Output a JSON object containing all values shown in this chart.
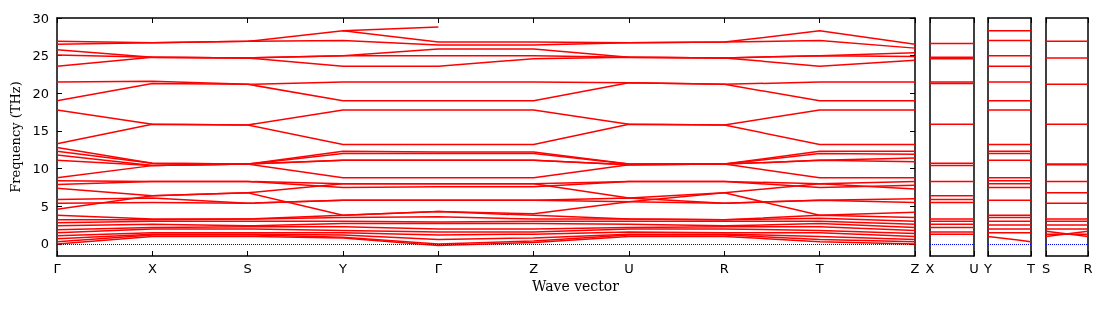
{
  "chart_data": [
    {
      "type": "line",
      "xlabel": "Wave vector",
      "ylabel": "Frequency (THz)",
      "marker": "none",
      "line_style": "solid",
      "ylim": [
        -1.6,
        30
      ],
      "yticks": [
        0,
        5,
        10,
        15,
        20,
        25,
        30
      ],
      "categories": [
        "Γ",
        "X",
        "S",
        "Y",
        "Γ",
        "Z",
        "U",
        "R",
        "T",
        "Z"
      ],
      "ref_lines": [
        {
          "axis": "y",
          "value": 0,
          "color": "#0000ff",
          "line_style": "dotted"
        }
      ],
      "series": [
        {
          "color": "#ff0000",
          "values": [
            null,
            null,
            null,
            28.3,
            28.8,
            null,
            null,
            null,
            null,
            null
          ]
        },
        {
          "color": "#ff0000",
          "values": [
            26.9,
            26.7,
            26.9,
            28.3,
            26.8,
            26.8,
            26.7,
            26.8,
            28.3,
            26.5
          ]
        },
        {
          "color": "#ff0000",
          "values": [
            26.5,
            26.7,
            26.9,
            27.0,
            26.4,
            26.4,
            26.7,
            26.8,
            27.0,
            26.0
          ]
        },
        {
          "color": "#ff0000",
          "values": [
            25.8,
            24.8,
            24.7,
            25.0,
            25.9,
            25.9,
            24.8,
            24.7,
            25.0,
            25.4
          ]
        },
        {
          "color": "#ff0000",
          "values": [
            25.1,
            24.8,
            24.7,
            25.0,
            25.0,
            25.0,
            24.8,
            24.7,
            25.0,
            24.9
          ]
        },
        {
          "color": "#ff0000",
          "values": [
            23.6,
            24.8,
            24.7,
            23.6,
            23.6,
            24.6,
            24.8,
            24.7,
            23.6,
            24.4
          ]
        },
        {
          "color": "#ff0000",
          "values": [
            21.5,
            21.6,
            21.2,
            21.5,
            21.5,
            21.5,
            21.4,
            21.2,
            21.5,
            21.5
          ]
        },
        {
          "color": "#ff0000",
          "values": [
            19.0,
            21.3,
            21.2,
            19.0,
            19.0,
            19.0,
            21.4,
            21.2,
            19.0,
            19.0
          ]
        },
        {
          "color": "#ff0000",
          "values": [
            17.8,
            15.9,
            15.8,
            17.8,
            17.8,
            17.8,
            15.9,
            15.8,
            17.8,
            17.8
          ]
        },
        {
          "color": "#ff0000",
          "values": [
            13.3,
            15.9,
            15.8,
            13.2,
            13.2,
            13.2,
            15.9,
            15.8,
            13.2,
            13.2
          ]
        },
        {
          "color": "#ff0000",
          "values": [
            12.8,
            10.7,
            10.6,
            12.3,
            12.2,
            12.2,
            10.6,
            10.6,
            12.3,
            12.3
          ]
        },
        {
          "color": "#ff0000",
          "values": [
            12.3,
            10.7,
            10.6,
            12.0,
            12.0,
            12.0,
            10.6,
            10.6,
            12.0,
            11.9
          ]
        },
        {
          "color": "#ff0000",
          "values": [
            11.8,
            10.4,
            10.6,
            11.1,
            11.1,
            11.1,
            10.5,
            10.6,
            11.1,
            11.4
          ]
        },
        {
          "color": "#ff0000",
          "values": [
            11.1,
            10.4,
            10.6,
            11.1,
            11.1,
            11.1,
            10.5,
            10.6,
            11.1,
            10.9
          ]
        },
        {
          "color": "#ff0000",
          "values": [
            8.8,
            10.4,
            10.6,
            8.8,
            8.8,
            8.8,
            10.5,
            10.6,
            8.8,
            8.8
          ]
        },
        {
          "color": "#ff0000",
          "values": [
            8.4,
            8.3,
            8.3,
            8.0,
            8.0,
            8.0,
            8.3,
            8.3,
            8.0,
            8.3
          ]
        },
        {
          "color": "#ff0000",
          "values": [
            7.9,
            8.3,
            8.3,
            7.5,
            7.6,
            7.6,
            8.3,
            8.3,
            7.5,
            7.8
          ]
        },
        {
          "color": "#ff0000",
          "values": [
            7.4,
            6.4,
            6.8,
            8.0,
            8.0,
            8.0,
            6.1,
            6.8,
            8.0,
            7.3
          ]
        },
        {
          "color": "#ff0000",
          "values": [
            5.9,
            6.1,
            5.4,
            5.8,
            5.8,
            5.8,
            6.1,
            5.4,
            5.8,
            6.0
          ]
        },
        {
          "color": "#ff0000",
          "values": [
            5.4,
            5.5,
            5.4,
            5.8,
            5.8,
            5.8,
            5.6,
            5.4,
            5.8,
            5.5
          ]
        },
        {
          "color": "#ff0000",
          "values": [
            4.6,
            6.4,
            6.8,
            3.8,
            4.3,
            4.0,
            5.6,
            6.8,
            3.8,
            4.2
          ]
        },
        {
          "color": "#ff0000",
          "values": [
            3.8,
            3.3,
            3.3,
            3.8,
            4.3,
            3.8,
            3.3,
            3.2,
            3.8,
            3.5
          ]
        },
        {
          "color": "#ff0000",
          "values": [
            3.2,
            3.2,
            3.3,
            3.5,
            3.6,
            3.3,
            3.3,
            3.2,
            3.4,
            3.0
          ]
        },
        {
          "color": "#ff0000",
          "values": [
            2.8,
            3.0,
            3.0,
            3.0,
            2.9,
            3.0,
            3.0,
            3.0,
            3.0,
            2.6
          ]
        },
        {
          "color": "#ff0000",
          "values": [
            2.4,
            2.6,
            2.4,
            2.7,
            2.7,
            2.7,
            2.6,
            2.4,
            2.7,
            2.2
          ]
        },
        {
          "color": "#ff0000",
          "values": [
            1.9,
            2.2,
            2.3,
            2.3,
            2.0,
            2.0,
            2.2,
            2.3,
            2.3,
            1.8
          ]
        },
        {
          "color": "#ff0000",
          "values": [
            1.5,
            2.0,
            2.0,
            1.8,
            1.6,
            1.6,
            2.0,
            2.0,
            1.8,
            1.4
          ]
        },
        {
          "color": "#ff0000",
          "values": [
            1.1,
            1.5,
            1.5,
            1.5,
            1.2,
            1.3,
            1.6,
            1.5,
            1.5,
            1.0
          ]
        },
        {
          "color": "#ff0000",
          "values": [
            0.7,
            1.3,
            1.3,
            1.2,
            0.6,
            0.8,
            1.3,
            1.3,
            1.0,
            0.6
          ]
        },
        {
          "color": "#ff0000",
          "values": [
            0.3,
            1.2,
            1.2,
            0.9,
            0.0,
            0.4,
            1.2,
            1.2,
            0.6,
            0.3
          ]
        },
        {
          "color": "#ff0000",
          "values": [
            0.0,
            1.0,
            1.0,
            0.8,
            -0.2,
            0.2,
            1.0,
            1.0,
            0.3,
            0.0
          ]
        }
      ]
    },
    {
      "type": "line",
      "marker": "none",
      "line_style": "solid",
      "tick_labels": "x",
      "ylim": [
        -1.6,
        30
      ],
      "yticks": [
        0,
        5,
        10,
        15,
        20,
        25,
        30
      ],
      "categories": [
        "X",
        "U"
      ],
      "ref_lines": [
        {
          "axis": "y",
          "value": 0,
          "color": "#0000ff",
          "line_style": "dotted"
        }
      ],
      "series": [
        {
          "color": "#ff0000",
          "values": [
            26.6,
            26.6
          ]
        },
        {
          "color": "#ff0000",
          "values": [
            24.8,
            24.8
          ]
        },
        {
          "color": "#ff0000",
          "values": [
            24.6,
            24.6
          ]
        },
        {
          "color": "#ff0000",
          "values": [
            21.5,
            21.5
          ]
        },
        {
          "color": "#ff0000",
          "values": [
            21.3,
            21.3
          ]
        },
        {
          "color": "#ff0000",
          "values": [
            15.9,
            15.9
          ]
        },
        {
          "color": "#ff0000",
          "values": [
            10.7,
            10.7
          ]
        },
        {
          "color": "#ff0000",
          "values": [
            10.4,
            10.4
          ]
        },
        {
          "color": "#ff0000",
          "values": [
            8.3,
            8.3
          ]
        },
        {
          "color": "#ff0000",
          "values": [
            6.4,
            6.4
          ]
        },
        {
          "color": "#ff0000",
          "values": [
            5.9,
            5.9
          ]
        },
        {
          "color": "#ff0000",
          "values": [
            5.5,
            5.5
          ]
        },
        {
          "color": "#ff0000",
          "values": [
            3.3,
            3.3
          ]
        },
        {
          "color": "#ff0000",
          "values": [
            3.0,
            3.0
          ]
        },
        {
          "color": "#ff0000",
          "values": [
            2.6,
            2.6
          ]
        },
        {
          "color": "#ff0000",
          "values": [
            2.2,
            2.2
          ]
        },
        {
          "color": "#ff0000",
          "values": [
            1.6,
            1.6
          ]
        },
        {
          "color": "#ff0000",
          "values": [
            1.3,
            1.3
          ]
        }
      ]
    },
    {
      "type": "line",
      "marker": "none",
      "line_style": "solid",
      "tick_labels": "x",
      "ylim": [
        -1.6,
        30
      ],
      "yticks": [
        0,
        5,
        10,
        15,
        20,
        25,
        30
      ],
      "categories": [
        "Y",
        "T"
      ],
      "ref_lines": [
        {
          "axis": "y",
          "value": 0,
          "color": "#0000ff",
          "line_style": "dotted"
        }
      ],
      "series": [
        {
          "color": "#ff0000",
          "values": [
            28.3,
            28.3
          ]
        },
        {
          "color": "#ff0000",
          "values": [
            27.0,
            27.0
          ]
        },
        {
          "color": "#ff0000",
          "values": [
            25.0,
            25.0
          ]
        },
        {
          "color": "#ff0000",
          "values": [
            23.6,
            23.6
          ]
        },
        {
          "color": "#ff0000",
          "values": [
            21.5,
            21.5
          ]
        },
        {
          "color": "#ff0000",
          "values": [
            19.0,
            19.0
          ]
        },
        {
          "color": "#ff0000",
          "values": [
            17.8,
            17.8
          ]
        },
        {
          "color": "#ff0000",
          "values": [
            13.2,
            13.2
          ]
        },
        {
          "color": "#ff0000",
          "values": [
            12.3,
            12.3
          ]
        },
        {
          "color": "#ff0000",
          "values": [
            12.0,
            12.0
          ]
        },
        {
          "color": "#ff0000",
          "values": [
            11.1,
            11.1
          ]
        },
        {
          "color": "#ff0000",
          "values": [
            8.8,
            8.8
          ]
        },
        {
          "color": "#ff0000",
          "values": [
            8.4,
            8.4
          ]
        },
        {
          "color": "#ff0000",
          "values": [
            8.0,
            8.0
          ]
        },
        {
          "color": "#ff0000",
          "values": [
            7.5,
            7.5
          ]
        },
        {
          "color": "#ff0000",
          "values": [
            5.8,
            5.8
          ]
        },
        {
          "color": "#ff0000",
          "values": [
            3.8,
            3.8
          ]
        },
        {
          "color": "#ff0000",
          "values": [
            3.5,
            3.5
          ]
        },
        {
          "color": "#ff0000",
          "values": [
            3.0,
            3.0
          ]
        },
        {
          "color": "#ff0000",
          "values": [
            2.5,
            2.5
          ]
        },
        {
          "color": "#ff0000",
          "values": [
            2.0,
            2.0
          ]
        },
        {
          "color": "#ff0000",
          "values": [
            1.5,
            1.5
          ]
        },
        {
          "color": "#ff0000",
          "values": [
            1.0,
            0.3
          ]
        }
      ]
    },
    {
      "type": "line",
      "marker": "none",
      "line_style": "solid",
      "tick_labels": "x",
      "ylim": [
        -1.6,
        30
      ],
      "yticks": [
        0,
        5,
        10,
        15,
        20,
        25,
        30
      ],
      "categories": [
        "S",
        "R"
      ],
      "ref_lines": [
        {
          "axis": "y",
          "value": 0,
          "color": "#0000ff",
          "line_style": "dotted"
        }
      ],
      "series": [
        {
          "color": "#ff0000",
          "values": [
            26.9,
            26.9
          ]
        },
        {
          "color": "#ff0000",
          "values": [
            24.7,
            24.7
          ]
        },
        {
          "color": "#ff0000",
          "values": [
            21.2,
            21.2
          ]
        },
        {
          "color": "#ff0000",
          "values": [
            15.9,
            15.9
          ]
        },
        {
          "color": "#ff0000",
          "values": [
            10.6,
            10.6
          ]
        },
        {
          "color": "#ff0000",
          "values": [
            10.5,
            10.5
          ]
        },
        {
          "color": "#ff0000",
          "values": [
            8.3,
            8.3
          ]
        },
        {
          "color": "#ff0000",
          "values": [
            6.8,
            6.8
          ]
        },
        {
          "color": "#ff0000",
          "values": [
            5.4,
            5.4
          ]
        },
        {
          "color": "#ff0000",
          "values": [
            3.3,
            3.3
          ]
        },
        {
          "color": "#ff0000",
          "values": [
            3.0,
            3.0
          ]
        },
        {
          "color": "#ff0000",
          "values": [
            2.5,
            2.5
          ]
        },
        {
          "color": "#ff0000",
          "values": [
            2.0,
            2.0
          ]
        },
        {
          "color": "#ff0000",
          "values": [
            1.7,
            1.0
          ]
        },
        {
          "color": "#ff0000",
          "values": [
            1.3,
            1.3
          ]
        },
        {
          "color": "#ff0000",
          "values": [
            1.0,
            1.7
          ]
        }
      ]
    }
  ]
}
